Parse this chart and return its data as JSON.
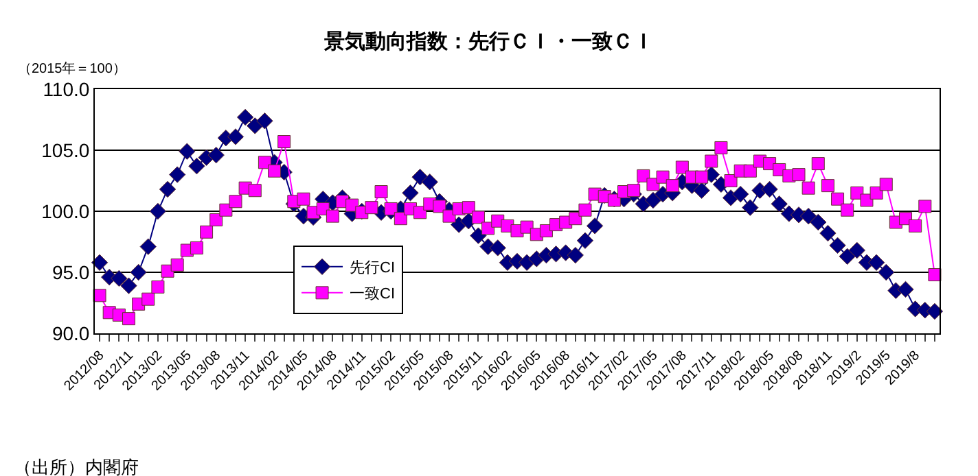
{
  "chart_data": {
    "type": "line",
    "title": "景気動向指数：先行ＣＩ・一致ＣＩ",
    "ylabel": "（2015年＝100）",
    "categories": [
      "2012/08",
      null,
      null,
      "2012/11",
      null,
      null,
      "2013/02",
      null,
      null,
      "2013/05",
      null,
      null,
      "2013/08",
      null,
      null,
      "2013/11",
      null,
      null,
      "2014/02",
      null,
      null,
      "2014/05",
      null,
      null,
      "2014/08",
      null,
      null,
      "2014/11",
      null,
      null,
      "2015/02",
      null,
      null,
      "2015/05",
      null,
      null,
      "2015/08",
      null,
      null,
      "2015/11",
      null,
      null,
      "2016/02",
      null,
      null,
      "2016/05",
      null,
      null,
      "2016/08",
      null,
      null,
      "2016/11",
      null,
      null,
      "2017/02",
      null,
      null,
      "2017/05",
      null,
      null,
      "2017/08",
      null,
      null,
      "2017/11",
      null,
      null,
      "2018/02",
      null,
      null,
      "2018/05",
      null,
      null,
      "2018/08",
      null,
      null,
      "2018/11",
      null,
      null,
      "2019/2",
      null,
      null,
      "2019/5",
      null,
      null,
      "2019/8",
      null,
      null
    ],
    "series": [
      {
        "name": "先行CI",
        "color": "#000080",
        "marker": "diamond",
        "values": [
          95.8,
          94.6,
          94.5,
          93.9,
          95.0,
          97.1,
          100.0,
          101.8,
          103.0,
          104.9,
          103.7,
          104.4,
          104.6,
          106.0,
          106.1,
          107.7,
          107.0,
          107.4,
          104.0,
          103.2,
          100.6,
          99.6,
          99.5,
          101.0,
          100.7,
          101.1,
          99.8,
          100.0,
          null,
          99.9,
          100.0,
          100.2,
          101.5,
          102.8,
          102.4,
          100.8,
          100.1,
          98.9,
          99.2,
          98.0,
          97.1,
          97.0,
          95.8,
          95.9,
          95.8,
          96.1,
          96.4,
          96.5,
          96.6,
          96.4,
          97.6,
          98.8,
          101.3,
          101.0,
          101.0,
          101.4,
          100.6,
          100.9,
          101.4,
          101.5,
          102.4,
          102.1,
          101.7,
          103.0,
          102.2,
          101.1,
          101.4,
          100.3,
          101.7,
          101.8,
          100.6,
          99.8,
          99.7,
          99.6,
          99.1,
          98.2,
          97.2,
          96.3,
          96.8,
          95.8,
          95.8,
          95.0,
          93.5,
          93.6,
          92.0,
          91.9,
          91.8
        ]
      },
      {
        "name": "一致CI",
        "color": "#ff00ff",
        "marker": "square",
        "values": [
          93.1,
          91.7,
          91.5,
          91.2,
          92.4,
          92.8,
          93.8,
          95.1,
          95.6,
          96.8,
          97.0,
          98.3,
          99.3,
          100.1,
          100.8,
          101.9,
          101.7,
          104.0,
          103.3,
          105.7,
          100.8,
          101.0,
          99.9,
          100.2,
          99.6,
          100.8,
          100.5,
          99.9,
          100.3,
          101.6,
          100.2,
          99.4,
          100.2,
          99.9,
          100.6,
          100.4,
          99.6,
          100.2,
          100.3,
          99.5,
          98.6,
          99.2,
          98.8,
          98.4,
          98.7,
          98.1,
          98.4,
          98.9,
          99.1,
          99.4,
          100.1,
          101.4,
          101.2,
          100.9,
          101.6,
          101.7,
          102.9,
          102.2,
          102.8,
          102.1,
          103.6,
          102.8,
          102.8,
          104.1,
          105.2,
          102.5,
          103.3,
          103.3,
          104.1,
          103.9,
          103.4,
          102.9,
          103.0,
          101.9,
          103.9,
          102.1,
          101.0,
          100.1,
          101.5,
          100.9,
          101.5,
          102.2,
          99.1,
          99.4,
          98.8,
          100.4,
          94.8
        ]
      }
    ],
    "ylim": [
      90,
      110
    ],
    "yticks": [
      {
        "value": 90,
        "label": "90.0"
      },
      {
        "value": 95,
        "label": "95.0"
      },
      {
        "value": 100,
        "label": "100.0"
      },
      {
        "value": 105,
        "label": "105.0"
      },
      {
        "value": 110,
        "label": "110.0"
      }
    ],
    "grid": "y",
    "legend": "bottom left",
    "line_style": "solid",
    "annotations": [
      "（出所）内閣府"
    ]
  }
}
